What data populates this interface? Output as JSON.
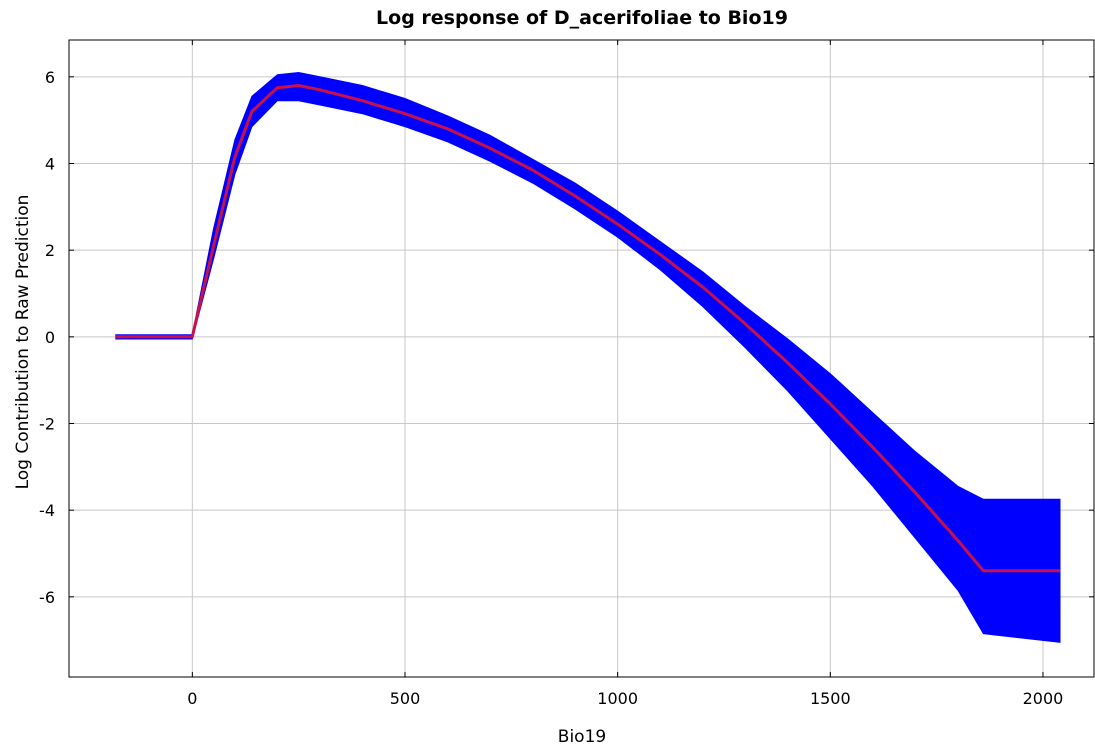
{
  "chart_data": {
    "type": "area",
    "title": "Log response of D_acerifoliae to Bio19",
    "xlabel": "Bio19",
    "ylabel": "Log Contribution to Raw Prediction",
    "xlim": [
      -290,
      2120
    ],
    "ylim": [
      -7.85,
      6.85
    ],
    "xticks": [
      0,
      500,
      1000,
      1500,
      2000
    ],
    "yticks": [
      -6,
      -4,
      -2,
      0,
      2,
      4,
      6
    ],
    "grid": true,
    "colors": {
      "band": "#0000ff",
      "mean": "#c8104a",
      "grid": "#c8c8c8",
      "axis": "#000000"
    },
    "series": [
      {
        "kind": "band",
        "x": [
          -180,
          0,
          50,
          100,
          140,
          200,
          250,
          300,
          400,
          500,
          600,
          700,
          800,
          900,
          1000,
          1100,
          1200,
          1300,
          1400,
          1500,
          1600,
          1700,
          1800,
          1860,
          2040
        ],
        "upper": [
          0.05,
          0.05,
          2.5,
          4.55,
          5.55,
          6.05,
          6.1,
          6.0,
          5.8,
          5.5,
          5.1,
          4.65,
          4.1,
          3.55,
          2.9,
          2.2,
          1.5,
          0.7,
          -0.05,
          -0.85,
          -1.75,
          -2.65,
          -3.45,
          -3.75,
          -3.75
        ],
        "lower": [
          -0.05,
          -0.05,
          1.8,
          3.75,
          4.85,
          5.45,
          5.45,
          5.35,
          5.15,
          4.85,
          4.5,
          4.05,
          3.55,
          2.95,
          2.3,
          1.55,
          0.7,
          -0.25,
          -1.25,
          -2.35,
          -3.45,
          -4.65,
          -5.85,
          -6.85,
          -7.05
        ]
      },
      {
        "kind": "line",
        "x": [
          -180,
          0,
          50,
          100,
          140,
          200,
          250,
          300,
          400,
          500,
          600,
          700,
          800,
          900,
          1000,
          1100,
          1200,
          1300,
          1400,
          1500,
          1600,
          1700,
          1800,
          1860,
          2040
        ],
        "y": [
          0,
          0,
          2.1,
          4.15,
          5.2,
          5.75,
          5.8,
          5.7,
          5.45,
          5.15,
          4.8,
          4.35,
          3.85,
          3.25,
          2.6,
          1.9,
          1.15,
          0.3,
          -0.6,
          -1.55,
          -2.55,
          -3.6,
          -4.7,
          -5.4,
          -5.4
        ]
      }
    ]
  }
}
